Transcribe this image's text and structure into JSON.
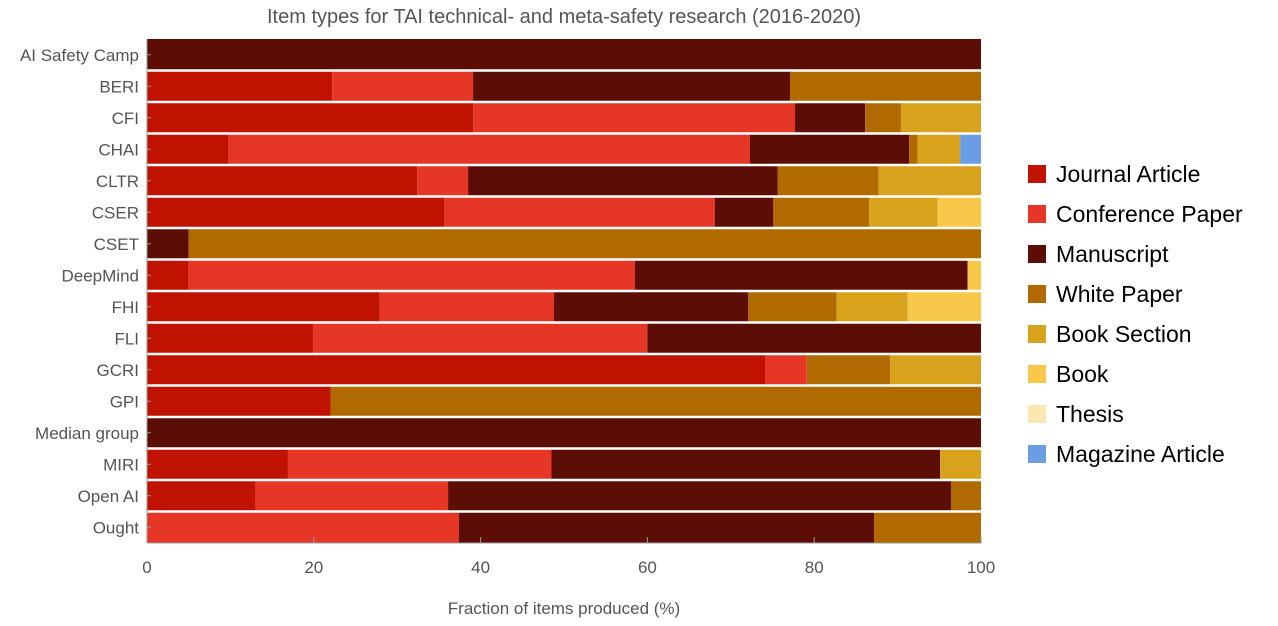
{
  "chart_data": {
    "type": "bar",
    "orientation": "horizontal",
    "stacked": true,
    "title": "Item types for TAI technical- and meta-safety research (2016-2020)",
    "xlabel": "Fraction of items produced (%)",
    "ylabel": "",
    "xlim": [
      0,
      100
    ],
    "xticks": [
      0,
      20,
      40,
      60,
      80,
      100
    ],
    "grid": false,
    "legend_position": "right",
    "categories": [
      "AI Safety Camp",
      "BERI",
      "CFI",
      "CHAI",
      "CLTR",
      "CSER",
      "CSET",
      "DeepMind",
      "FHI",
      "FLI",
      "GCRI",
      "GPI",
      "Median group",
      "MIRI",
      "Open AI",
      "Ought"
    ],
    "series": [
      {
        "name": "Journal Article",
        "color": "#bf1300",
        "values": [
          0,
          22.2,
          39.1,
          9.8,
          32.4,
          35.7,
          0,
          5.0,
          27.9,
          19.9,
          74.1,
          22.0,
          0,
          16.9,
          13.0,
          0
        ]
      },
      {
        "name": "Conference Paper",
        "color": "#e63626",
        "values": [
          0,
          16.9,
          38.6,
          62.5,
          6.1,
          32.4,
          0,
          53.5,
          20.9,
          40.1,
          5.0,
          0,
          0,
          31.6,
          23.1,
          37.4
        ]
      },
      {
        "name": "Manuscript",
        "color": "#5c0e06",
        "values": [
          100,
          38.0,
          8.4,
          19.1,
          37.1,
          7.0,
          5.0,
          39.9,
          23.3,
          40.0,
          0,
          0,
          100,
          46.6,
          60.3,
          49.8
        ]
      },
      {
        "name": "White Paper",
        "color": "#b06a00",
        "values": [
          0,
          22.9,
          4.3,
          1.0,
          12.1,
          11.5,
          95.0,
          0,
          10.6,
          0,
          10.0,
          78.0,
          0,
          0,
          3.6,
          12.8
        ]
      },
      {
        "name": "Book Section",
        "color": "#d8a21c",
        "values": [
          0,
          0,
          9.6,
          5.1,
          12.3,
          8.2,
          0,
          0,
          8.5,
          0,
          10.9,
          0,
          0,
          4.9,
          0,
          0
        ]
      },
      {
        "name": "Book",
        "color": "#f8c84a",
        "values": [
          0,
          0,
          0,
          0,
          0,
          5.2,
          0,
          1.6,
          8.8,
          0,
          0,
          0,
          0,
          0,
          0,
          0
        ]
      },
      {
        "name": "Thesis",
        "color": "#fbe8b0",
        "values": [
          0,
          0,
          0,
          0,
          0,
          0,
          0,
          0,
          0,
          0,
          0,
          0,
          0,
          0,
          0,
          0
        ]
      },
      {
        "name": "Magazine Article",
        "color": "#6a9de3",
        "values": [
          0,
          0,
          0,
          2.5,
          0,
          0,
          0,
          0,
          0,
          0,
          0,
          0,
          0,
          0,
          0,
          0
        ]
      }
    ]
  }
}
